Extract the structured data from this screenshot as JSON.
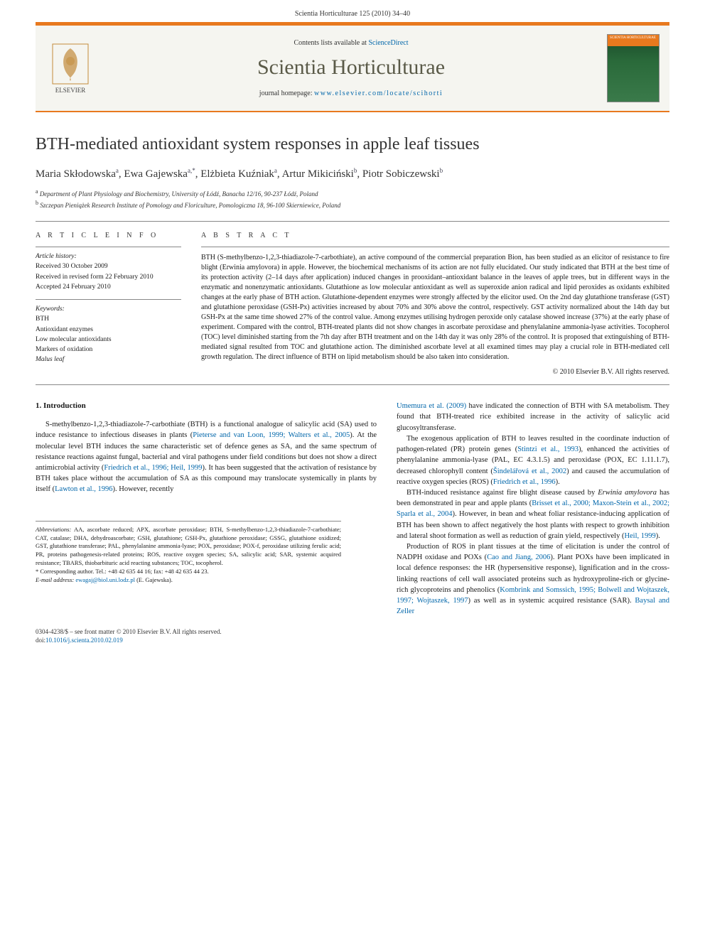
{
  "page_header": "Scientia Horticulturae 125 (2010) 34–40",
  "journal_box": {
    "contents_prefix": "Contents lists available at ",
    "contents_link": "ScienceDirect",
    "journal_title": "Scientia Horticulturae",
    "homepage_prefix": "journal homepage: ",
    "homepage_url": "www.elsevier.com/locate/scihorti",
    "elsevier_label": "ELSEVIER",
    "cover_label": "SCIENTIA HORTICULTURAE"
  },
  "article": {
    "title": "BTH-mediated antioxidant system responses in apple leaf tissues",
    "authors_html": "Maria Skłodowska<sup>a</sup>, Ewa Gajewska<sup>a,*</sup>, Elżbieta Kuźniak<sup>a</sup>, Artur Mikiciński<sup>b</sup>, Piotr Sobiczewski<sup>b</sup>",
    "affiliations": [
      {
        "sup": "a",
        "text": "Department of Plant Physiology and Biochemistry, University of Łódź, Banacha 12/16, 90-237 Łódź, Poland"
      },
      {
        "sup": "b",
        "text": "Szczepan Pieniążek Research Institute of Pomology and Floriculture, Pomologiczna 18, 96-100 Skierniewice, Poland"
      }
    ]
  },
  "info": {
    "heading": "A R T I C L E   I N F O",
    "history_label": "Article history:",
    "history": [
      "Received 30 October 2009",
      "Received in revised form 22 February 2010",
      "Accepted 24 February 2010"
    ],
    "keywords_label": "Keywords:",
    "keywords": [
      "BTH",
      "Antioxidant enzymes",
      "Low molecular antioxidants",
      "Markers of oxidation",
      "Malus leaf"
    ]
  },
  "abstract": {
    "heading": "A B S T R A C T",
    "text": "BTH (S-methylbenzo-1,2,3-thiadiazole-7-carbothiate), an active compound of the commercial preparation Bion, has been studied as an elicitor of resistance to fire blight (Erwinia amylovora) in apple. However, the biochemical mechanisms of its action are not fully elucidated. Our study indicated that BTH at the best time of its protection activity (2–14 days after application) induced changes in prooxidant–antioxidant balance in the leaves of apple trees, but in different ways in the enzymatic and nonenzymatic antioxidants. Glutathione as low molecular antioxidant as well as superoxide anion radical and lipid peroxides as oxidants exhibited changes at the early phase of BTH action. Glutathione-dependent enzymes were strongly affected by the elicitor used. On the 2nd day glutathione transferase (GST) and glutathione peroxidase (GSH-Px) activities increased by about 70% and 30% above the control, respectively. GST activity normalized about the 14th day but GSH-Px at the same time showed 27% of the control value. Among enzymes utilising hydrogen peroxide only catalase showed increase (37%) at the early phase of experiment. Compared with the control, BTH-treated plants did not show changes in ascorbate peroxidase and phenylalanine ammonia-lyase activities. Tocopherol (TOC) level diminished starting from the 7th day after BTH treatment and on the 14th day it was only 28% of the control. It is proposed that extinguishing of BTH-mediated signal resulted from TOC and glutathione action. The diminished ascorbate level at all examined times may play a crucial role in BTH-mediated cell growth regulation. The direct influence of BTH on lipid metabolism should be also taken into consideration.",
    "copyright": "© 2010 Elsevier B.V. All rights reserved."
  },
  "body": {
    "section_heading": "1. Introduction",
    "left_paragraphs": [
      "S-methylbenzo-1,2,3-thiadiazole-7-carbothiate (BTH) is a functional analogue of salicylic acid (SA) used to induce resistance to infectious diseases in plants (<span class=\"cite\">Pieterse and van Loon, 1999; Walters et al., 2005</span>). At the molecular level BTH induces the same characteristic set of defence genes as SA, and the same spectrum of resistance reactions against fungal, bacterial and viral pathogens under field conditions but does not show a direct antimicrobial activity (<span class=\"cite\">Friedrich et al., 1996; Heil, 1999</span>). It has been suggested that the activation of resistance by BTH takes place without the accumulation of SA as this compound may translocate systemically in plants by itself (<span class=\"cite\">Lawton et al., 1996</span>). However, recently"
    ],
    "right_paragraphs": [
      "<span class=\"cite\">Umemura et al. (2009)</span> have indicated the connection of BTH with SA metabolism. They found that BTH-treated rice exhibited increase in the activity of salicylic acid glucosyltransferase.",
      "The exogenous application of BTH to leaves resulted in the coordinate induction of pathogen-related (PR) protein genes (<span class=\"cite\">Stintzi et al., 1993</span>), enhanced the activities of phenylalanine ammonia-lyase (PAL, EC 4.3.1.5) and peroxidase (POX, EC 1.11.1.7), decreased chlorophyll content (<span class=\"cite\">Šindelářová et al., 2002</span>) and caused the accumulation of reactive oxygen species (ROS) (<span class=\"cite\">Friedrich et al., 1996</span>).",
      "BTH-induced resistance against fire blight disease caused by <i>Erwinia amylovora</i> has been demonstrated in pear and apple plants (<span class=\"cite\">Brisset et al., 2000; Maxon-Stein et al., 2002; Sparla et al., 2004</span>). However, in bean and wheat foliar resistance-inducing application of BTH has been shown to affect negatively the host plants with respect to growth inhibition and lateral shoot formation as well as reduction of grain yield, respectively (<span class=\"cite\">Heil, 1999</span>).",
      "Production of ROS in plant tissues at the time of elicitation is under the control of NADPH oxidase and POXs (<span class=\"cite\">Cao and Jiang, 2006</span>). Plant POXs have been implicated in local defence responses: the HR (hypersensitive response), lignification and in the cross-linking reactions of cell wall associated proteins such as hydroxyproline-rich or glycine-rich glycoproteins and phenolics (<span class=\"cite\">Kombrink and Somssich, 1995; Bolwell and Wojtaszek, 1997; Wojtaszek, 1997</span>) as well as in systemic acquired resistance (SAR). <span class=\"cite\">Baysal and Zeller</span>"
    ]
  },
  "footnotes": {
    "abbrev_label": "Abbreviations:",
    "abbrev_text": " AA, ascorbate reduced; APX, ascorbate peroxidase; BTH, S-methylbenzo-1,2,3-thiadiazole-7-carbothiate; CAT, catalase; DHA, dehydroascorbate; GSH, glutathione; GSH-Px, glutathione peroxidase; GSSG, glutathione oxidized; GST, glutathione transferase; PAL, phenylalanine ammonia-lyase; POX, peroxidase; POX-f, peroxidase utilizing ferulic acid; PR, proteins pathogenesis-related proteins; ROS, reactive oxygen species; SA, salicylic acid; SAR, systemic acquired resistance; TBARS, thiobarbituric acid reacting substances; TOC, tocopherol.",
    "corr_label": "* Corresponding author. Tel.: +48 42 635 44 16; fax: +48 42 635 44 23.",
    "email_label": "E-mail address:",
    "email": "ewagaj@biol.uni.lodz.pl",
    "email_suffix": " (E. Gajewska)."
  },
  "footer": {
    "line1": "0304-4238/$ – see front matter © 2010 Elsevier B.V. All rights reserved.",
    "doi_prefix": "doi:",
    "doi": "10.1016/j.scienta.2010.02.019"
  },
  "colors": {
    "accent": "#e8791e",
    "link": "#0066aa",
    "journal_title": "#5a5a48",
    "bg_box": "#f5f5f0"
  }
}
